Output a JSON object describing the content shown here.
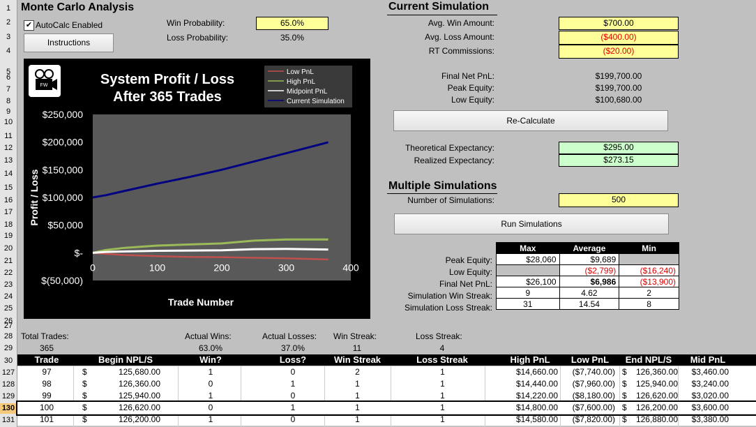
{
  "title": "Monte Carlo Analysis",
  "row_numbers": [
    "1",
    "2",
    "3",
    "4",
    "5",
    "6",
    "7",
    "8",
    "9",
    "10",
    "11",
    "12",
    "13",
    "14",
    "15",
    "16",
    "17",
    "18",
    "19",
    "20",
    "21",
    "22",
    "23",
    "24",
    "25",
    "26",
    "27",
    "28",
    "29",
    "30",
    "127",
    "128",
    "129",
    "130",
    "131"
  ],
  "autocalc": {
    "label": "AutoCalc Enabled",
    "checked": true
  },
  "instructions_button": "Instructions",
  "probabilities": {
    "win_label": "Win Probability:",
    "win_value": "65.0%",
    "loss_label": "Loss Probability:",
    "loss_value": "35.0%"
  },
  "current_sim": {
    "heading": "Current Simulation",
    "avg_win_label": "Avg. Win Amount:",
    "avg_win_value": "$700.00",
    "avg_loss_label": "Avg. Loss Amount:",
    "avg_loss_value": "($400.00)",
    "rt_comm_label": "RT Commissions:",
    "rt_comm_value": "($20.00)",
    "final_net_label": "Final Net PnL:",
    "final_net_value": "$199,700.00",
    "peak_label": "Peak Equity:",
    "peak_value": "$199,700.00",
    "low_label": "Low Equity:",
    "low_value": "$100,680.00",
    "recalc_button": "Re-Calculate",
    "theo_label": "Theoretical Expectancy:",
    "theo_value": "$295.00",
    "real_label": "Realized Expectancy:",
    "real_value": "$273.15"
  },
  "multi_sim": {
    "heading": "Multiple Simulations",
    "num_label": "Number of Simulations:",
    "num_value": "500",
    "run_button": "Run Simulations",
    "col_headers": [
      "Max",
      "Average",
      "Min"
    ],
    "rows": [
      {
        "label": "Peak Equity:",
        "max": "$28,060",
        "avg": "$9,689",
        "min": ""
      },
      {
        "label": "Low Equity:",
        "max": "",
        "avg": "($2,799)",
        "min": "($16,240)"
      },
      {
        "label": "Final Net PnL:",
        "max": "$26,100",
        "avg": "$6,986",
        "min": "($13,900)"
      },
      {
        "label": "Simulation Win Streak:",
        "max": "9",
        "avg": "4.62",
        "min": "2"
      },
      {
        "label": "Simulation Loss Streak:",
        "max": "31",
        "avg": "14.54",
        "min": "8"
      }
    ]
  },
  "summary": {
    "total_trades_label": "Total Trades:",
    "total_trades": "365",
    "actual_wins_label": "Actual Wins:",
    "actual_wins": "63.0%",
    "actual_losses_label": "Actual Losses:",
    "actual_losses": "37.0%",
    "win_streak_label": "Win Streak:",
    "win_streak": "11",
    "loss_streak_label": "Loss Streak:",
    "loss_streak": "4"
  },
  "trade_table": {
    "headers": [
      "Trade",
      "Begin NPL/S",
      "Win?",
      "Loss?",
      "Win Streak",
      "Loss Streak",
      "High PnL",
      "Low PnL",
      "End NPL/S",
      "Mid PnL"
    ],
    "rows": [
      {
        "trade": "97",
        "cur": "$",
        "begin": "125,680.00",
        "win": "1",
        "loss": "0",
        "wstreak": "2",
        "lstreak": "1",
        "high": "$14,660.00",
        "low": "($7,740.00)",
        "cur2": "$",
        "end": "126,360.00",
        "mid": "$3,460.00"
      },
      {
        "trade": "98",
        "cur": "$",
        "begin": "126,360.00",
        "win": "0",
        "loss": "1",
        "wstreak": "1",
        "lstreak": "1",
        "high": "$14,440.00",
        "low": "($7,960.00)",
        "cur2": "$",
        "end": "125,940.00",
        "mid": "$3,240.00"
      },
      {
        "trade": "99",
        "cur": "$",
        "begin": "125,940.00",
        "win": "1",
        "loss": "0",
        "wstreak": "1",
        "lstreak": "1",
        "high": "$14,220.00",
        "low": "($8,180.00)",
        "cur2": "$",
        "end": "126,620.00",
        "mid": "$3,020.00"
      },
      {
        "trade": "100",
        "cur": "$",
        "begin": "126,620.00",
        "win": "0",
        "loss": "1",
        "wstreak": "1",
        "lstreak": "1",
        "high": "$14,800.00",
        "low": "($7,600.00)",
        "cur2": "$",
        "end": "126,200.00",
        "mid": "$3,600.00"
      },
      {
        "trade": "101",
        "cur": "$",
        "begin": "126,200.00",
        "win": "1",
        "loss": "0",
        "wstreak": "1",
        "lstreak": "1",
        "high": "$14,580.00",
        "low": "($7,820.00)",
        "cur2": "$",
        "end": "126,880.00",
        "mid": "$3,380.00"
      }
    ]
  },
  "chart_icon": "film-camera-logo-icon",
  "chart_data": {
    "type": "line",
    "title": "System Profit / Loss",
    "subtitle": "After 365 Trades",
    "xlabel": "Trade Number",
    "ylabel": "Profit / Loss",
    "xlim": [
      0,
      400
    ],
    "ylim": [
      -50000,
      250000
    ],
    "x_ticks": [
      "0",
      "100",
      "200",
      "300",
      "400"
    ],
    "y_ticks": [
      "$250,000",
      "$200,000",
      "$150,000",
      "$100,000",
      "$50,000",
      "$-",
      "$(50,000)"
    ],
    "y_tick_values": [
      250000,
      200000,
      150000,
      100000,
      50000,
      0,
      -50000
    ],
    "x_tick_values": [
      0,
      100,
      200,
      300,
      400
    ],
    "legend_position": "top-right",
    "series": [
      {
        "name": "Low PnL",
        "color": "#c0504d",
        "x": [
          0,
          20,
          50,
          100,
          150,
          200,
          250,
          300,
          365
        ],
        "values": [
          0,
          -2000,
          -4000,
          -6000,
          -7500,
          -8000,
          -9000,
          -10000,
          -12000
        ]
      },
      {
        "name": "High PnL",
        "color": "#9bbb59",
        "x": [
          0,
          20,
          50,
          100,
          150,
          200,
          250,
          300,
          365
        ],
        "values": [
          0,
          5000,
          9000,
          13000,
          15000,
          17000,
          22000,
          24000,
          24000
        ]
      },
      {
        "name": "Midpoint PnL",
        "color": "#ffffff",
        "x": [
          0,
          20,
          50,
          100,
          150,
          200,
          250,
          300,
          365
        ],
        "values": [
          0,
          1500,
          2500,
          3500,
          4000,
          4500,
          6500,
          7000,
          6000
        ]
      },
      {
        "name": "Current Simulation",
        "color": "#000080",
        "x": [
          0,
          20,
          50,
          100,
          150,
          200,
          250,
          300,
          365
        ],
        "values": [
          100000,
          104000,
          112000,
          125000,
          137000,
          150000,
          165000,
          180000,
          199700
        ]
      }
    ]
  }
}
